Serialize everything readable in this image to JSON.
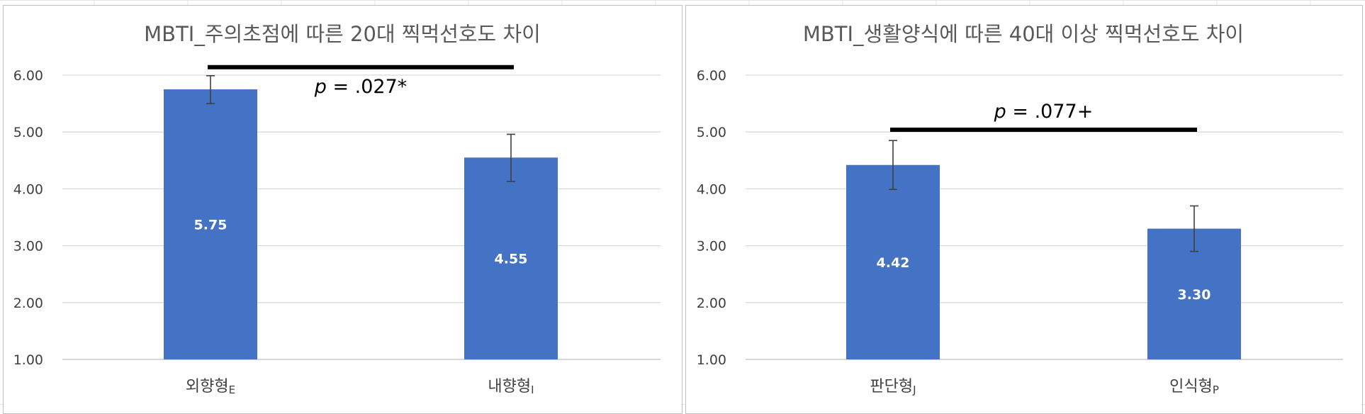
{
  "colors": {
    "bar": "#4472c4",
    "grid": "#d9d9d9",
    "sheet_grid": "#e3e3e3",
    "border": "#bfbfbf",
    "text": "#404040",
    "title": "#595959",
    "error_bar": "#404040",
    "bracket": "#000000",
    "value_label": "#ffffff"
  },
  "chart_data": [
    {
      "type": "bar",
      "title": "MBTI_주의초점에 따른 20대 찍먹선호도 차이",
      "categories": [
        {
          "label": "외향형",
          "sub": "E"
        },
        {
          "label": "내향형",
          "sub": "I"
        }
      ],
      "values": [
        5.75,
        4.55
      ],
      "value_labels": [
        "5.75",
        "4.55"
      ],
      "error_low": [
        5.5,
        4.13
      ],
      "error_high": [
        5.99,
        4.96
      ],
      "ylim": [
        1,
        6
      ],
      "yticks": [
        "1.00",
        "2.00",
        "3.00",
        "4.00",
        "5.00",
        "6.00"
      ],
      "grid": true,
      "significance": {
        "p_symbol": "p",
        "text": " = .027*",
        "y": 6.14,
        "label_position": "below"
      }
    },
    {
      "type": "bar",
      "title": "MBTI_생활양식에 따른 40대 이상 찍먹선호도 차이",
      "categories": [
        {
          "label": "판단형",
          "sub": "J"
        },
        {
          "label": "인식형",
          "sub": "P"
        }
      ],
      "values": [
        4.42,
        3.3
      ],
      "value_labels": [
        "4.42",
        "3.30"
      ],
      "error_low": [
        3.99,
        2.9
      ],
      "error_high": [
        4.85,
        3.7
      ],
      "ylim": [
        1,
        6
      ],
      "yticks": [
        "1.00",
        "2.00",
        "3.00",
        "4.00",
        "5.00",
        "6.00"
      ],
      "grid": true,
      "significance": {
        "p_symbol": "p",
        "text": " = .077+",
        "y": 5.04,
        "label_position": "above"
      }
    }
  ]
}
